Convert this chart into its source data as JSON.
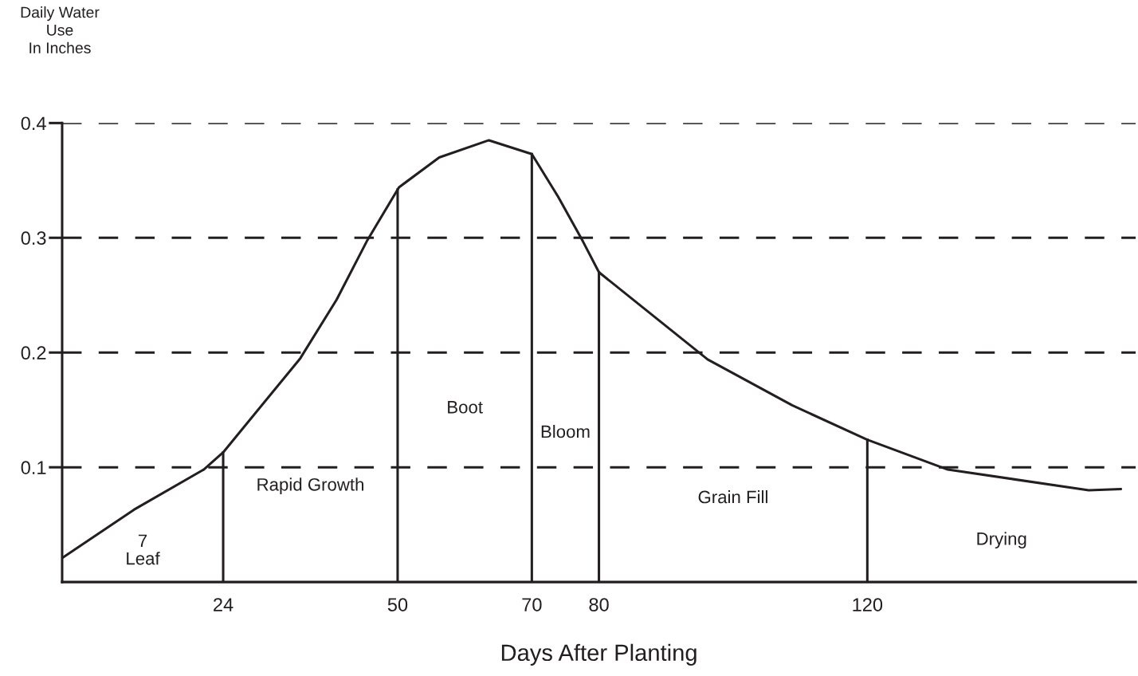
{
  "chart_data": {
    "type": "line",
    "xlabel": "Days After Planting",
    "ylabel": "Daily Water\nUse\nIn Inches",
    "series": [
      {
        "color": "#231f20",
        "x": [
          0,
          10.7,
          21.1,
          24,
          35.5,
          40.9,
          45.5,
          50.2,
          56.2,
          63.6,
          70,
          73.9,
          77.6,
          80,
          96.2,
          108.8,
          120,
          132,
          153,
          157.8
        ],
        "values": [
          0.021,
          0.063,
          0.098,
          0.113,
          0.195,
          0.246,
          0.298,
          0.344,
          0.37,
          0.385,
          0.373,
          0.336,
          0.297,
          0.27,
          0.194,
          0.154,
          0.124,
          0.098,
          0.08,
          0.081
        ]
      }
    ],
    "xlim": [
      0,
      160
    ],
    "xticks": [
      24,
      50,
      70,
      80,
      120
    ],
    "ylim": [
      0,
      0.4
    ],
    "yticks": [
      0.1,
      0.2,
      0.3,
      0.4
    ],
    "grid": "y",
    "line_style": "solid",
    "marker": "none",
    "ref_lines": [
      {
        "axis": "x",
        "value": 24,
        "color": "#231f20"
      },
      {
        "axis": "x",
        "value": 50,
        "color": "#231f20"
      },
      {
        "axis": "x",
        "value": 70,
        "color": "#231f20"
      },
      {
        "axis": "x",
        "value": 80,
        "color": "#231f20"
      },
      {
        "axis": "x",
        "value": 120,
        "color": "#231f20"
      }
    ],
    "annotations": [
      "7\nLeaf",
      "Rapid Growth",
      "Boot",
      "Bloom",
      "Grain Fill",
      "Drying"
    ]
  }
}
